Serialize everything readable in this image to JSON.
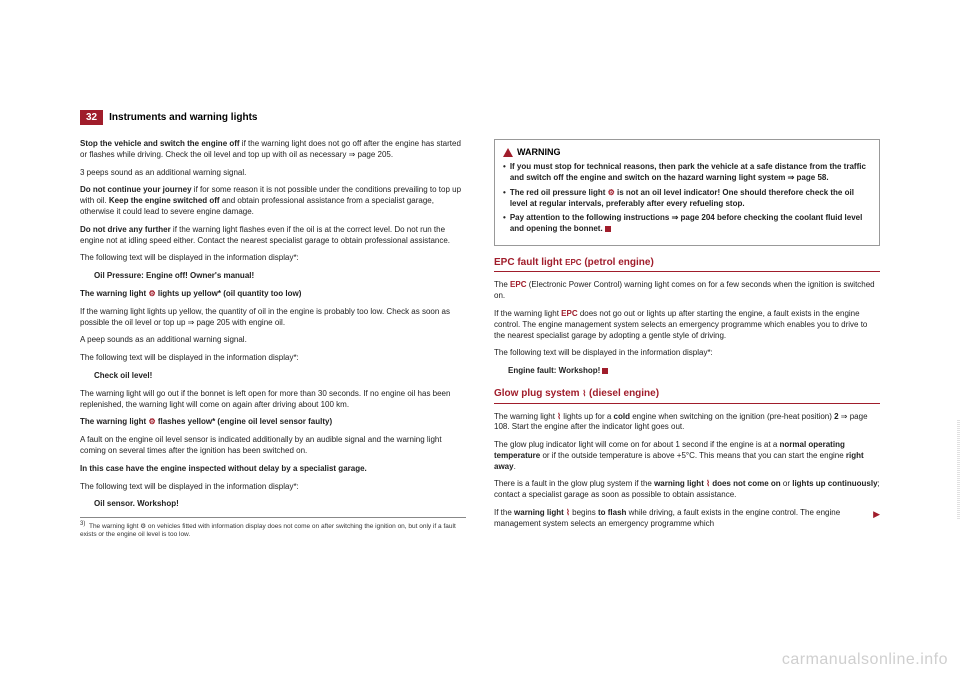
{
  "header": {
    "page_num": "32",
    "title": "Instruments and warning lights"
  },
  "left": {
    "p1a": "Stop the vehicle and switch the engine off",
    "p1b": " if the warning light does not go off after the engine has started or flashes while driving. Check the oil level and top up with oil as necessary ⇒ page 205.",
    "p2": "3 peeps sound as an additional warning signal.",
    "p3a": "Do not continue your journey",
    "p3b": " if for some reason it is not possible under the conditions prevailing to top up with oil. ",
    "p3c": "Keep the engine switched off",
    "p3d": " and obtain professional assistance from a specialist garage, otherwise it could lead to severe engine damage.",
    "p4a": "Do not drive any further",
    "p4b": " if the warning light flashes even if the oil is at the correct level. Do not run the engine not at idling speed either. Contact the nearest specialist garage to obtain professional assistance.",
    "p5": "The following text will be displayed in the information display*:",
    "p5msg": "Oil Pressure: Engine off! Owner's manual!",
    "p6a": "The warning light ",
    "p6sym": "⚙",
    "p6b": " lights up yellow* (oil quantity too low)",
    "p7": "If the warning light lights up yellow, the quantity of oil in the engine is probably too low. Check as soon as possible the oil level or top up ⇒ page 205 with engine oil.",
    "p8": "A peep sounds as an additional warning signal.",
    "p9": "The following text will be displayed in the information display*:",
    "p9msg": "Check oil level!",
    "p10": "The warning light will go out if the bonnet is left open for more than 30 seconds. If no engine oil has been replenished, the warning light will come on again after driving about 100 km.",
    "p11a": "The warning light ",
    "p11sym": "⚙",
    "p11b": " flashes yellow* (engine oil level sensor faulty)",
    "p12": "A fault on the engine oil level sensor is indicated additionally by an audible signal and the warning light coming on several times after the ignition has been switched on.",
    "p13": "In this case have the engine inspected without delay by a specialist garage.",
    "p14": "The following text will be displayed in the information display*:",
    "p14msg": "Oil sensor. Workshop!",
    "footnote_num": "3)",
    "footnote": "The warning light ⚙ on vehicles fitted with information display does not come on after switching the ignition on, but only if a fault exists or the engine oil level is too low."
  },
  "right": {
    "warn_label": "WARNING",
    "w1": "If you must stop for technical reasons, then park the vehicle at a safe distance from the traffic and switch off the engine and switch on the hazard warning light system ⇒ page 58.",
    "w2a": "The red oil pressure light ",
    "w2sym": "⚙",
    "w2b": " is not an oil level indicator! One should therefore check the oil level at regular intervals, preferably after every refueling stop.",
    "w3": "Pay attention to the following instructions ⇒ page 204 before checking the coolant fluid level and opening the bonnet.",
    "sec1_title": "EPC fault light ",
    "sec1_sym": "EPC",
    "sec1_title2": " (petrol engine)",
    "s1p1a": "The ",
    "s1p1sym": "EPC",
    "s1p1b": " (Electronic Power Control) warning light comes on for a few seconds when the ignition is switched on.",
    "s1p2a": "If the warning light ",
    "s1p2sym": "EPC",
    "s1p2b": " does not go out or lights up after starting the engine, a fault exists in the engine control. The engine management system selects an emergency programme which enables you to drive to the nearest specialist garage by adopting a gentle style of driving.",
    "s1p3": "The following text will be displayed in the information display*:",
    "s1p3msg": "Engine fault: Workshop!",
    "sec2_title": "Glow plug system ",
    "sec2_sym": "⌇",
    "sec2_title2": " (diesel engine)",
    "s2p1a": "The warning light ",
    "s2p1sym": "⌇",
    "s2p1b": " lights up for a ",
    "s2p1c": "cold",
    "s2p1d": " engine when switching on the ignition (pre-heat position) ",
    "s2p1e": "2",
    "s2p1f": " ⇒ page 108. Start the engine after the indicator light goes out.",
    "s2p2a": "The glow plug indicator light will come on for about 1 second if the engine is at a ",
    "s2p2b": "normal operating temperature",
    "s2p2c": " or if the outside temperature is above +5°C. This means that you can start the engine ",
    "s2p2d": "right away",
    "s2p2e": ".",
    "s2p3a": "There is a fault in the glow plug system if the ",
    "s2p3b": "warning light ",
    "s2p3sym": "⌇",
    "s2p3c": " does not come on",
    "s2p3d": " or ",
    "s2p3e": "lights up continuously",
    "s2p3f": "; contact a specialist garage as soon as possible to obtain assistance.",
    "s2p4a": "If the ",
    "s2p4b": "warning light ",
    "s2p4sym": "⌇",
    "s2p4c": " begins ",
    "s2p4d": "to flash",
    "s2p4e": " while driving, a fault exists in the engine control. The engine management system selects an emergency programme which"
  },
  "watermark": "carmanualsonline.info"
}
